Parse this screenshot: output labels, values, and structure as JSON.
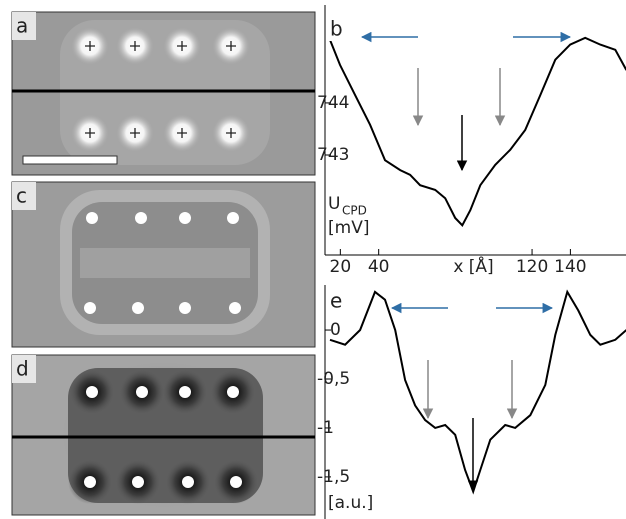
{
  "panel_labels": [
    "a",
    "c",
    "d"
  ],
  "chart_data": [
    {
      "type": "line",
      "panel": "b",
      "xlabel": "x [Å]",
      "ylabel": "U",
      "ylabel_sub": "CPD",
      "ylabel_unit": "[mV]",
      "x": [
        14.6,
        19.8,
        27.7,
        35.5,
        43.3,
        51.2,
        56.4,
        61.6,
        69.5,
        74.7,
        79.9,
        83.6,
        87.8,
        93.0,
        100.8,
        108.6,
        116.4,
        124.3,
        132.1,
        139.9,
        147.7,
        155.6,
        163.4,
        169.2
      ],
      "values": [
        745.21,
        744.73,
        744.15,
        743.58,
        742.9,
        742.71,
        742.62,
        742.42,
        742.33,
        742.17,
        741.79,
        741.65,
        741.94,
        742.42,
        742.81,
        743.1,
        743.48,
        744.15,
        744.83,
        745.12,
        745.25,
        745.12,
        745.02,
        744.63
      ],
      "color": "#000000",
      "xlim": [
        12,
        169
      ],
      "ylim": [
        741.08,
        745.88
      ],
      "xticks": [
        20,
        40,
        120,
        140
      ],
      "yticks": [
        743,
        744
      ]
    },
    {
      "type": "line",
      "panel": "e",
      "ylabel": "[a.u.]",
      "x": [
        14.6,
        22.5,
        30.3,
        38.1,
        43.3,
        48.6,
        53.8,
        59.0,
        64.2,
        69.5,
        74.7,
        79.9,
        85.1,
        89.3,
        93.0,
        98.2,
        106.0,
        111.2,
        119.1,
        126.9,
        132.1,
        138.4,
        144.1,
        150.4,
        155.6,
        163.4,
        169.2
      ],
      "values": [
        -0.1,
        -0.15,
        0.0,
        0.39,
        0.31,
        0.0,
        -0.51,
        -0.77,
        -0.92,
        -1.0,
        -0.97,
        -1.07,
        -1.43,
        -1.65,
        -1.43,
        -1.12,
        -0.97,
        -1.0,
        -0.87,
        -0.56,
        -0.05,
        0.39,
        0.2,
        -0.05,
        -0.15,
        -0.1,
        0.0
      ],
      "color": "#000000",
      "xlim": [
        12,
        169
      ],
      "ylim": [
        -1.93,
        0.46
      ],
      "yticks": [
        0,
        {
          "value": -0.5,
          "label": "-0,5"
        },
        -1,
        {
          "value": -1.5,
          "label": "-1,5"
        }
      ]
    }
  ]
}
